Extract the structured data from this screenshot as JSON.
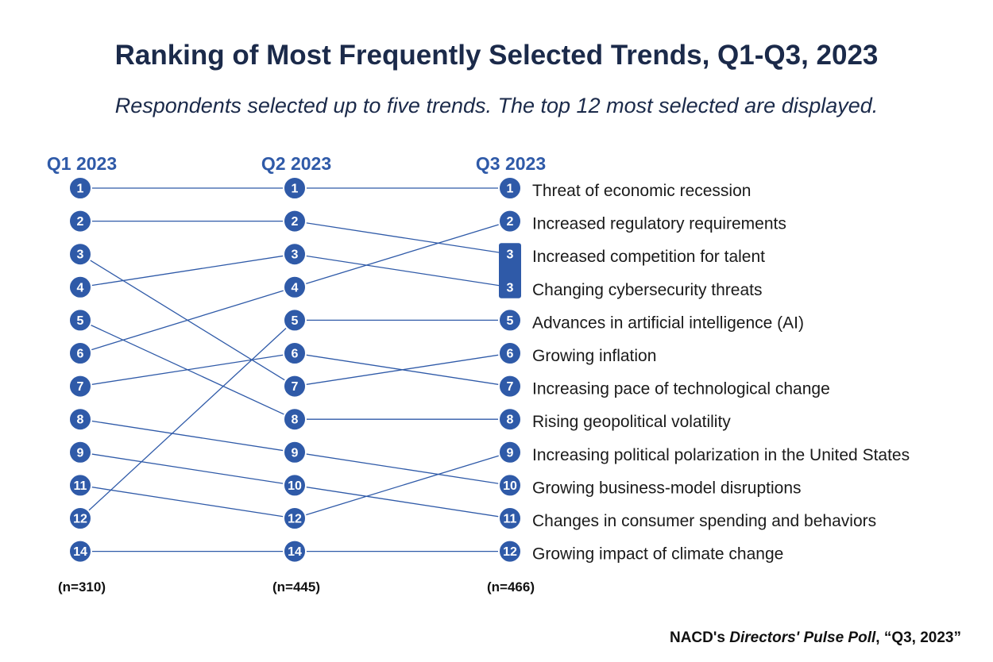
{
  "title": "Ranking of Most Frequently Selected Trends, Q1-Q3, 2023",
  "subtitle": "Respondents selected up to five trends. The top 12 most selected are displayed.",
  "source": {
    "prefix": "NACD's ",
    "publication": "Directors' Pulse Poll",
    "suffix": ", “Q3, 2023”"
  },
  "colors": {
    "accent": "#2f5aa8",
    "title": "#1b2a4a"
  },
  "chart_data": {
    "type": "bump",
    "columns": [
      {
        "label": "Q1 2023",
        "n": "(n=310)",
        "ranks": [
          "1",
          "2",
          "3",
          "4",
          "5",
          "6",
          "7",
          "8",
          "9",
          "11",
          "12",
          "14"
        ]
      },
      {
        "label": "Q2 2023",
        "n": "(n=445)",
        "ranks": [
          "1",
          "2",
          "3",
          "4",
          "5",
          "6",
          "7",
          "8",
          "9",
          "10",
          "12",
          "14"
        ]
      },
      {
        "label": "Q3 2023",
        "n": "(n=466)",
        "ranks": [
          "1",
          "2",
          "3",
          "3",
          "5",
          "6",
          "7",
          "8",
          "9",
          "10",
          "11",
          "12"
        ]
      }
    ],
    "trends": [
      "Threat of economic recession",
      "Increased regulatory requirements",
      "Increased competition for talent",
      "Changing cybersecurity threats",
      "Advances in artificial intelligence (AI)",
      "Growing inflation",
      "Increasing pace of technological change",
      "Rising geopolitical volatility",
      "Increasing political polarization in the United States",
      "Growing business-model disruptions",
      "Changes in consumer spending and behaviors",
      "Growing impact of climate change"
    ],
    "connections_q1_q2": [
      [
        0,
        0
      ],
      [
        1,
        1
      ],
      [
        2,
        6
      ],
      [
        3,
        2
      ],
      [
        4,
        7
      ],
      [
        5,
        3
      ],
      [
        6,
        5
      ],
      [
        7,
        8
      ],
      [
        8,
        9
      ],
      [
        9,
        10
      ],
      [
        10,
        4
      ],
      [
        11,
        11
      ]
    ],
    "connections_q2_q3": [
      [
        0,
        0
      ],
      [
        1,
        2
      ],
      [
        2,
        3
      ],
      [
        3,
        1
      ],
      [
        4,
        4
      ],
      [
        5,
        6
      ],
      [
        6,
        5
      ],
      [
        7,
        7
      ],
      [
        8,
        9
      ],
      [
        9,
        10
      ],
      [
        10,
        8
      ],
      [
        11,
        11
      ]
    ],
    "tied_groups_q3": [
      [
        2,
        3
      ]
    ]
  }
}
